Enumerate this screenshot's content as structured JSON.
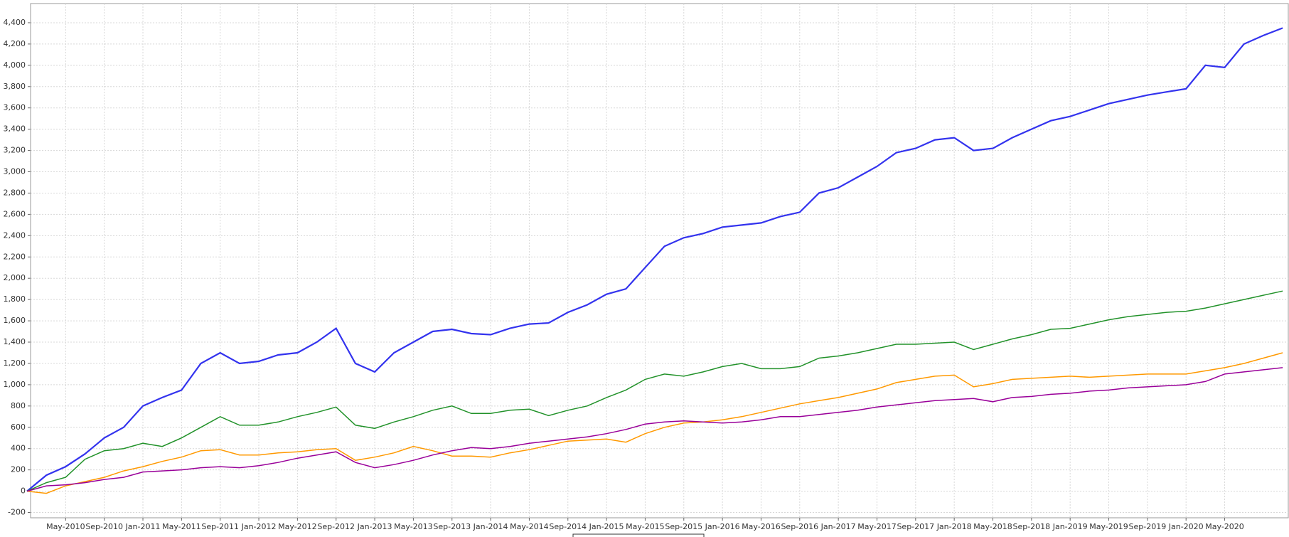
{
  "chart_data": {
    "type": "line",
    "categories": [
      null,
      null,
      "May-2010",
      null,
      "Sep-2010",
      null,
      "Jan-2011",
      null,
      "May-2011",
      null,
      "Sep-2011",
      null,
      "Jan-2012",
      null,
      "May-2012",
      null,
      "Sep-2012",
      null,
      "Jan-2013",
      null,
      "May-2013",
      null,
      "Sep-2013",
      null,
      "Jan-2014",
      null,
      "May-2014",
      null,
      "Sep-2014",
      null,
      "Jan-2015",
      null,
      "May-2015",
      null,
      "Sep-2015",
      null,
      "Jan-2016",
      null,
      "May-2016",
      null,
      "Sep-2016",
      null,
      "Jan-2017",
      null,
      "May-2017",
      null,
      "Sep-2017",
      null,
      "Jan-2018",
      null,
      "May-2018",
      null,
      "Sep-2018",
      null,
      "Jan-2019",
      null,
      "May-2019",
      null,
      "Sep-2019",
      null,
      "Jan-2020",
      null,
      "May-2020",
      null,
      null,
      null
    ],
    "series": [
      {
        "color": "#3333ee",
        "values": [
          0,
          150,
          230,
          350,
          500,
          600,
          800,
          880,
          950,
          1200,
          1300,
          1200,
          1220,
          1280,
          1300,
          1400,
          1530,
          1200,
          1120,
          1300,
          1400,
          1500,
          1520,
          1480,
          1470,
          1530,
          1570,
          1580,
          1680,
          1750,
          1850,
          1900,
          2100,
          2300,
          2380,
          2420,
          2480,
          2500,
          2520,
          2580,
          2620,
          2800,
          2850,
          2950,
          3050,
          3180,
          3220,
          3300,
          3320,
          3200,
          3220,
          3320,
          3400,
          3480,
          3520,
          3580,
          3640,
          3680,
          3720,
          3750,
          3780,
          4000,
          3980,
          4200,
          4280,
          4350
        ]
      },
      {
        "color": "#22922a",
        "values": [
          0,
          80,
          130,
          300,
          380,
          400,
          450,
          420,
          500,
          600,
          700,
          620,
          620,
          650,
          700,
          740,
          790,
          620,
          590,
          650,
          700,
          760,
          800,
          730,
          730,
          760,
          770,
          710,
          760,
          800,
          880,
          950,
          1050,
          1100,
          1080,
          1120,
          1170,
          1200,
          1150,
          1150,
          1170,
          1250,
          1270,
          1300,
          1340,
          1380,
          1380,
          1390,
          1400,
          1330,
          1380,
          1430,
          1470,
          1520,
          1530,
          1570,
          1610,
          1640,
          1660,
          1680,
          1690,
          1720,
          1760,
          1800,
          1840,
          1880
        ]
      },
      {
        "color": "#ff9900",
        "values": [
          0,
          -20,
          50,
          90,
          130,
          190,
          230,
          280,
          320,
          380,
          390,
          340,
          340,
          360,
          370,
          390,
          400,
          290,
          320,
          360,
          420,
          380,
          330,
          330,
          320,
          360,
          390,
          430,
          470,
          480,
          490,
          460,
          540,
          600,
          640,
          650,
          670,
          700,
          740,
          780,
          820,
          850,
          880,
          920,
          960,
          1020,
          1050,
          1080,
          1090,
          980,
          1010,
          1050,
          1060,
          1070,
          1080,
          1070,
          1080,
          1090,
          1100,
          1100,
          1100,
          1130,
          1160,
          1200,
          1250,
          1300
        ]
      },
      {
        "color": "#990099",
        "values": [
          0,
          50,
          60,
          80,
          110,
          130,
          180,
          190,
          200,
          220,
          230,
          220,
          240,
          270,
          310,
          340,
          370,
          270,
          220,
          250,
          290,
          340,
          380,
          410,
          400,
          420,
          450,
          470,
          490,
          510,
          540,
          580,
          630,
          650,
          660,
          650,
          640,
          650,
          670,
          700,
          700,
          720,
          740,
          760,
          790,
          810,
          830,
          850,
          860,
          870,
          840,
          880,
          890,
          910,
          920,
          940,
          950,
          970,
          980,
          990,
          1000,
          1030,
          1100,
          1120,
          1140,
          1160
        ]
      }
    ],
    "ylim": [
      -250,
      4580
    ],
    "yticks": [
      -200,
      0,
      200,
      400,
      600,
      800,
      {
        "value": 1000,
        "label": "1,000"
      },
      {
        "value": 1200,
        "label": "1,200"
      },
      {
        "value": 1400,
        "label": "1,400"
      },
      {
        "value": 1600,
        "label": "1,600"
      },
      {
        "value": 1800,
        "label": "1,800"
      },
      {
        "value": 2000,
        "label": "2,000"
      },
      {
        "value": 2200,
        "label": "2,200"
      },
      {
        "value": 2400,
        "label": "2,400"
      },
      {
        "value": 2600,
        "label": "2,600"
      },
      {
        "value": 2800,
        "label": "2,800"
      },
      {
        "value": 3000,
        "label": "3,000"
      },
      {
        "value": 3200,
        "label": "3,200"
      },
      {
        "value": 3400,
        "label": "3,400"
      },
      {
        "value": 3600,
        "label": "3,600"
      },
      {
        "value": 3800,
        "label": "3,800"
      },
      {
        "value": 4000,
        "label": "4,000"
      },
      {
        "value": 4200,
        "label": "4,200"
      },
      {
        "value": 4400,
        "label": "4,400"
      }
    ],
    "grid": true
  }
}
